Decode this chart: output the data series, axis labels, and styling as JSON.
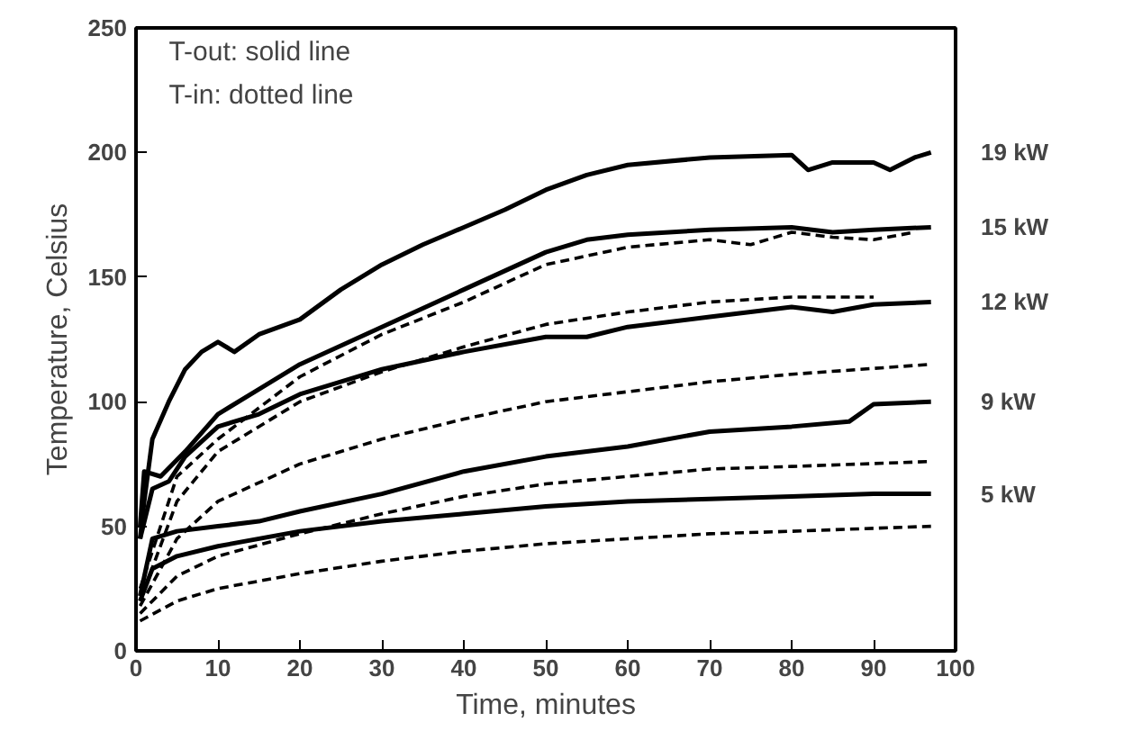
{
  "chart_data": {
    "type": "line",
    "xlabel": "Time, minutes",
    "ylabel": "Temperature, Celsius",
    "xlim": [
      0,
      100
    ],
    "ylim": [
      0,
      250
    ],
    "xticks": [
      0,
      10,
      20,
      30,
      40,
      50,
      60,
      70,
      80,
      90,
      100
    ],
    "yticks": [
      0,
      50,
      100,
      150,
      200,
      250
    ],
    "grid": false,
    "marker": "none",
    "annotations": [
      "T-out: solid line",
      "T-in: dotted line"
    ],
    "series": [
      {
        "name": "19 kW",
        "color": "#000000",
        "line_style": "solid",
        "x": [
          0.5,
          1,
          2,
          4,
          6,
          8,
          10,
          12,
          15,
          20,
          25,
          30,
          35,
          40,
          45,
          50,
          55,
          60,
          70,
          80,
          82,
          85,
          90,
          92,
          95,
          97
        ],
        "values": [
          45,
          60,
          85,
          100,
          113,
          120,
          124,
          120,
          127,
          133,
          145,
          155,
          163,
          170,
          177,
          185,
          191,
          195,
          198,
          199,
          193,
          196,
          196,
          193,
          198,
          200
        ]
      },
      {
        "name": "15 kW",
        "color": "#000000",
        "line_style": "solid",
        "x": [
          0.5,
          1,
          3,
          6,
          10,
          15,
          20,
          30,
          40,
          50,
          55,
          60,
          70,
          80,
          85,
          90,
          97
        ],
        "values": [
          50,
          72,
          70,
          80,
          95,
          105,
          115,
          130,
          145,
          160,
          165,
          167,
          169,
          170,
          168,
          169,
          170
        ]
      },
      {
        "name": "12 kW",
        "color": "#000000",
        "line_style": "solid",
        "x": [
          0.5,
          2,
          4,
          6,
          10,
          15,
          20,
          30,
          40,
          50,
          55,
          60,
          70,
          80,
          85,
          90,
          97
        ],
        "values": [
          45,
          65,
          68,
          78,
          90,
          95,
          103,
          113,
          120,
          126,
          126,
          130,
          134,
          138,
          136,
          139,
          140
        ]
      },
      {
        "name": "9 kW",
        "color": "#000000",
        "line_style": "solid",
        "x": [
          0.5,
          2,
          5,
          10,
          15,
          20,
          30,
          40,
          50,
          60,
          70,
          80,
          87,
          90,
          97
        ],
        "values": [
          22,
          45,
          48,
          50,
          52,
          56,
          63,
          72,
          78,
          82,
          88,
          90,
          92,
          99,
          100
        ]
      },
      {
        "name": "5 kW",
        "color": "#000000",
        "line_style": "solid",
        "x": [
          0.5,
          2,
          5,
          10,
          20,
          30,
          40,
          50,
          60,
          70,
          80,
          90,
          97
        ],
        "values": [
          20,
          33,
          38,
          42,
          48,
          52,
          55,
          58,
          60,
          61,
          62,
          63,
          63
        ]
      },
      {
        "color": "#000000",
        "line_style": "dashed",
        "x": [
          0.5,
          5,
          10,
          20,
          30,
          40,
          50,
          60,
          70,
          75,
          80,
          85,
          90,
          95
        ],
        "values": [
          25,
          70,
          85,
          110,
          127,
          140,
          155,
          162,
          165,
          163,
          168,
          166,
          165,
          168
        ]
      },
      {
        "color": "#000000",
        "line_style": "dashed",
        "x": [
          0.5,
          5,
          10,
          20,
          30,
          40,
          50,
          60,
          70,
          80,
          90
        ],
        "values": [
          20,
          60,
          80,
          100,
          112,
          122,
          131,
          136,
          140,
          142,
          142
        ]
      },
      {
        "color": "#000000",
        "line_style": "dashed",
        "x": [
          0.5,
          5,
          10,
          20,
          30,
          40,
          50,
          60,
          70,
          80,
          97
        ],
        "values": [
          18,
          45,
          60,
          75,
          85,
          93,
          100,
          104,
          108,
          111,
          115
        ]
      },
      {
        "color": "#000000",
        "line_style": "dashed",
        "x": [
          0.5,
          5,
          10,
          20,
          30,
          40,
          50,
          60,
          70,
          80,
          97
        ],
        "values": [
          15,
          30,
          38,
          47,
          55,
          62,
          67,
          70,
          73,
          74,
          76
        ]
      },
      {
        "color": "#000000",
        "line_style": "dashed",
        "x": [
          0.5,
          5,
          10,
          20,
          30,
          40,
          50,
          60,
          70,
          80,
          97
        ],
        "values": [
          12,
          20,
          25,
          31,
          36,
          40,
          43,
          45,
          47,
          48,
          50
        ]
      }
    ]
  }
}
